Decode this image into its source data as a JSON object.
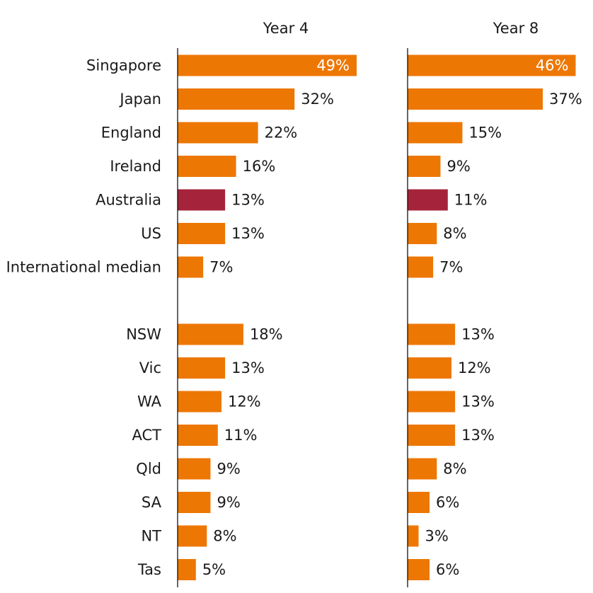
{
  "chart_data": {
    "type": "bar",
    "orientation": "horizontal",
    "categories": [
      "Singapore",
      "Japan",
      "England",
      "Ireland",
      "Australia",
      "US",
      "International median",
      "NSW",
      "Vic",
      "WA",
      "ACT",
      "Qld",
      "SA",
      "NT",
      "Tas"
    ],
    "value_labels": {
      "Year 4": [
        "49%",
        "32%",
        "22%",
        "16%",
        "13%",
        "13%",
        "7%",
        "18%",
        "13%",
        "12%",
        "11%",
        "9%",
        "9%",
        "8%",
        "5%"
      ],
      "Year 8": [
        "46%",
        "37%",
        "15%",
        "9%",
        "11%",
        "8%",
        "7%",
        "13%",
        "12%",
        "13%",
        "13%",
        "8%",
        "6%",
        "3%",
        "6%"
      ]
    },
    "series": [
      {
        "name": "Year 4",
        "values": [
          49,
          32,
          22,
          16,
          13,
          13,
          7,
          18,
          13,
          12,
          11,
          9,
          9,
          8,
          5
        ]
      },
      {
        "name": "Year 8",
        "values": [
          46,
          37,
          15,
          9,
          11,
          8,
          7,
          13,
          12,
          13,
          13,
          8,
          6,
          3,
          6
        ]
      }
    ],
    "group_break_after": "International median",
    "highlight_category": "Australia",
    "xlim": [
      0,
      50
    ],
    "grid": false,
    "legend": "none",
    "colors": {
      "bar": "#ED7703",
      "highlight": "#A6243B",
      "axis": "#000000"
    }
  }
}
